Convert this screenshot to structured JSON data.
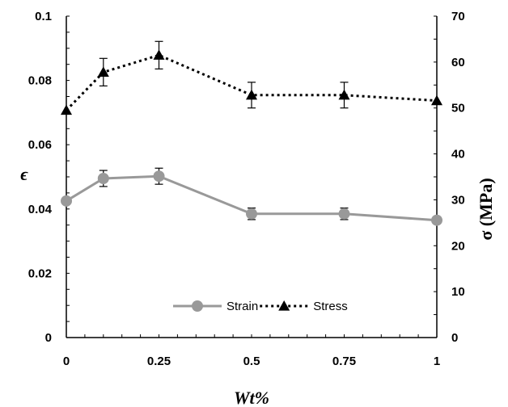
{
  "chart_data": {
    "type": "line",
    "x": [
      0,
      0.1,
      0.25,
      0.5,
      0.75,
      1
    ],
    "xlabel": "Wt%",
    "xlim": [
      0,
      1
    ],
    "xticks": [
      "0",
      "0.25",
      "0.5",
      "0.75",
      "1"
    ],
    "ylabel_left": "ϵ",
    "ylim_left": [
      0,
      0.1
    ],
    "yticks_left": [
      "0",
      "0.02",
      "0.04",
      "0.06",
      "0.08",
      "0.1"
    ],
    "ylabel_right": "σ (MPa)",
    "ylim_right": [
      0,
      70
    ],
    "yticks_right": [
      "0",
      "10",
      "20",
      "30",
      "40",
      "50",
      "60",
      "70"
    ],
    "grid": false,
    "legend_position": "bottom-center",
    "series": [
      {
        "name": "Strain",
        "axis": "left",
        "marker": "circle",
        "line_style": "solid",
        "color": "#999999",
        "values": [
          0.0425,
          0.0495,
          0.0502,
          0.0385,
          0.0385,
          0.0365
        ],
        "errors": [
          0.0,
          0.0025,
          0.0025,
          0.0018,
          0.0018,
          0.0
        ]
      },
      {
        "name": "Stress",
        "axis": "right",
        "marker": "triangle",
        "line_style": "dotted",
        "color": "#000000",
        "values": [
          49.5,
          57.8,
          61.5,
          52.8,
          52.8,
          51.6
        ],
        "errors": [
          0.0,
          3.0,
          3.0,
          2.8,
          2.8,
          0.0
        ]
      }
    ]
  }
}
